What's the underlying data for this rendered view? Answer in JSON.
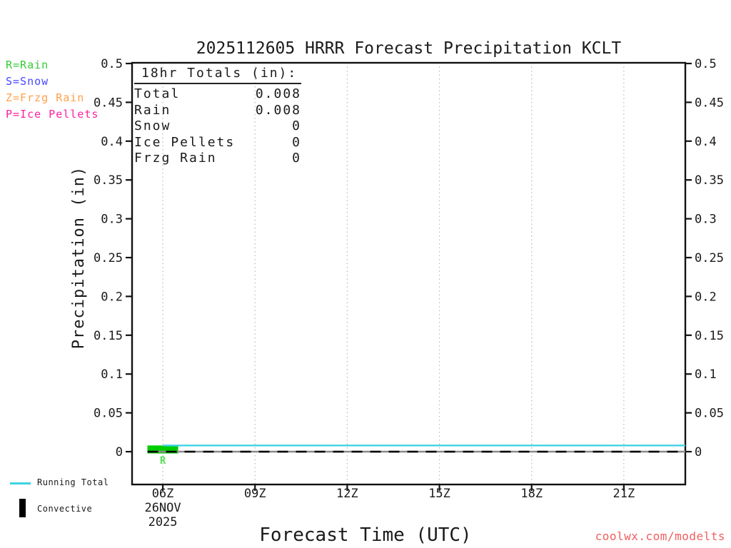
{
  "title": "2025112605 HRRR Forecast Precipitation KCLT",
  "watermark": {
    "text": "coolwx.com/modelts",
    "color": "#f15e5e"
  },
  "type_legend": {
    "items": [
      {
        "label": "R=Rain",
        "color": "#33cc33"
      },
      {
        "label": "S=Snow",
        "color": "#4747ff"
      },
      {
        "label": "Z=Frzg Rain",
        "color": "#ffa04d"
      },
      {
        "label": "P=Ice Pellets",
        "color": "#ff1f9e"
      }
    ]
  },
  "totals_box": {
    "heading": "18hr Totals (in):",
    "rows": [
      {
        "label": "Total",
        "value": "0.008"
      },
      {
        "label": "Rain",
        "value": "0.008"
      },
      {
        "label": "Snow",
        "value": "0"
      },
      {
        "label": "Ice Pellets",
        "value": "0"
      },
      {
        "label": "Frzg Rain",
        "value": "0"
      }
    ]
  },
  "bottom_legend": {
    "running_total_label": "Running Total",
    "running_total_color": "#3fd2e2",
    "convective_label": "Convective",
    "convective_color": "#000000"
  },
  "chart_data": {
    "type": "bar+line",
    "title": "2025112605 HRRR Forecast Precipitation KCLT",
    "xlabel": "Forecast Time (UTC)",
    "ylabel": "Precipitation (in)",
    "x_range_hours": [
      5,
      23
    ],
    "y_range": [
      0,
      0.5
    ],
    "grid": "vertical-dotted",
    "y_ticks": [
      {
        "v": 0,
        "label": "0"
      },
      {
        "v": 0.05,
        "label": "0.05"
      },
      {
        "v": 0.1,
        "label": "0.1"
      },
      {
        "v": 0.15,
        "label": "0.15"
      },
      {
        "v": 0.2,
        "label": "0.2"
      },
      {
        "v": 0.25,
        "label": "0.25"
      },
      {
        "v": 0.3,
        "label": "0.3"
      },
      {
        "v": 0.35,
        "label": "0.35"
      },
      {
        "v": 0.4,
        "label": "0.4"
      },
      {
        "v": 0.45,
        "label": "0.45"
      },
      {
        "v": 0.5,
        "label": "0.5"
      }
    ],
    "x_ticks": [
      {
        "hour": 6,
        "label": "06Z",
        "sublabels": [
          "26NOV",
          "2025"
        ]
      },
      {
        "hour": 9,
        "label": "09Z",
        "sublabels": []
      },
      {
        "hour": 12,
        "label": "12Z",
        "sublabels": []
      },
      {
        "hour": 15,
        "label": "15Z",
        "sublabels": []
      },
      {
        "hour": 18,
        "label": "18Z",
        "sublabels": []
      },
      {
        "hour": 21,
        "label": "21Z",
        "sublabels": []
      }
    ],
    "bars": [
      {
        "hour": 6,
        "width_hours": 1,
        "value": 0.008,
        "type": "Rain",
        "color": "#00cc00",
        "annotation": "R",
        "annotation_color": "#55e055"
      }
    ],
    "running_total": {
      "name": "Running Total",
      "color": "#3fd2e2",
      "points": [
        [
          6,
          0.008
        ],
        [
          23,
          0.008
        ]
      ]
    },
    "convective": {
      "name": "Convective",
      "color": "#000000",
      "style": "dashed",
      "points": [
        [
          5.5,
          0
        ],
        [
          23,
          0
        ]
      ]
    }
  }
}
